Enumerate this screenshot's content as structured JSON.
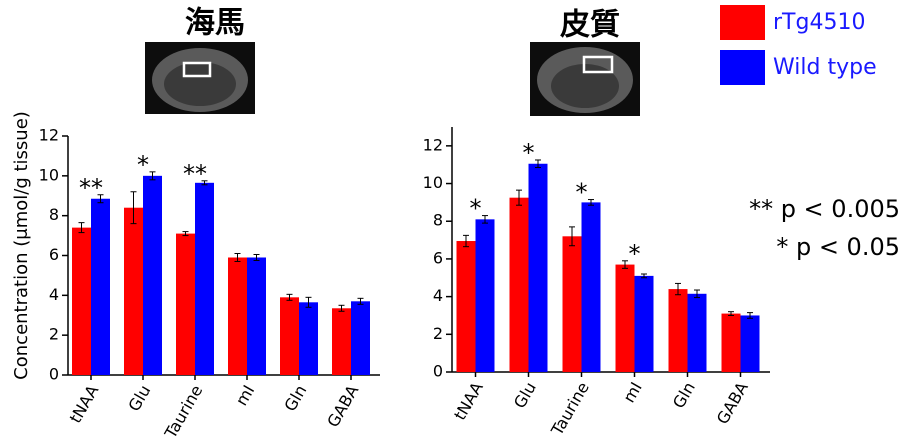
{
  "chart_data": [
    {
      "type": "bar",
      "title": "海馬",
      "y_label": "Concentration (μmol/g tissue)",
      "categories": [
        "tNAA",
        "Glu",
        "Taurine",
        "mI",
        "Gln",
        "GABA"
      ],
      "series": [
        {
          "name": "rTg4510",
          "color": "#ff0000",
          "values": [
            7.4,
            8.4,
            7.1,
            5.9,
            3.9,
            3.35
          ],
          "errors": [
            0.25,
            0.8,
            0.1,
            0.2,
            0.15,
            0.15
          ]
        },
        {
          "name": "Wild type",
          "color": "#0000ff",
          "values": [
            8.85,
            10.0,
            9.65,
            5.9,
            3.65,
            3.7
          ],
          "errors": [
            0.2,
            0.2,
            0.1,
            0.15,
            0.25,
            0.15
          ]
        }
      ],
      "significance": [
        "**",
        "*",
        "**",
        null,
        null,
        null
      ],
      "ylim": [
        0,
        12
      ],
      "yticks": [
        0,
        2,
        4,
        6,
        8,
        10,
        12
      ]
    },
    {
      "type": "bar",
      "title": "皮質",
      "categories": [
        "tNAA",
        "Glu",
        "Taurine",
        "mI",
        "Gln",
        "GABA"
      ],
      "series": [
        {
          "color": "#ff0000",
          "values": [
            6.95,
            9.25,
            7.2,
            5.7,
            4.4,
            3.1
          ],
          "errors": [
            0.3,
            0.4,
            0.5,
            0.2,
            0.3,
            0.1
          ]
        },
        {
          "color": "#0000ff",
          "values": [
            8.1,
            11.05,
            9.0,
            5.1,
            4.15,
            3.0
          ],
          "errors": [
            0.2,
            0.2,
            0.15,
            0.1,
            0.2,
            0.15
          ]
        }
      ],
      "significance": [
        "*",
        "*",
        "*",
        "*",
        null,
        null
      ],
      "ylim": [
        0,
        13
      ],
      "yticks": [
        0,
        2,
        4,
        6,
        8,
        10,
        12
      ]
    }
  ],
  "notes": [
    "** p < 0.005",
    "* p < 0.05"
  ]
}
